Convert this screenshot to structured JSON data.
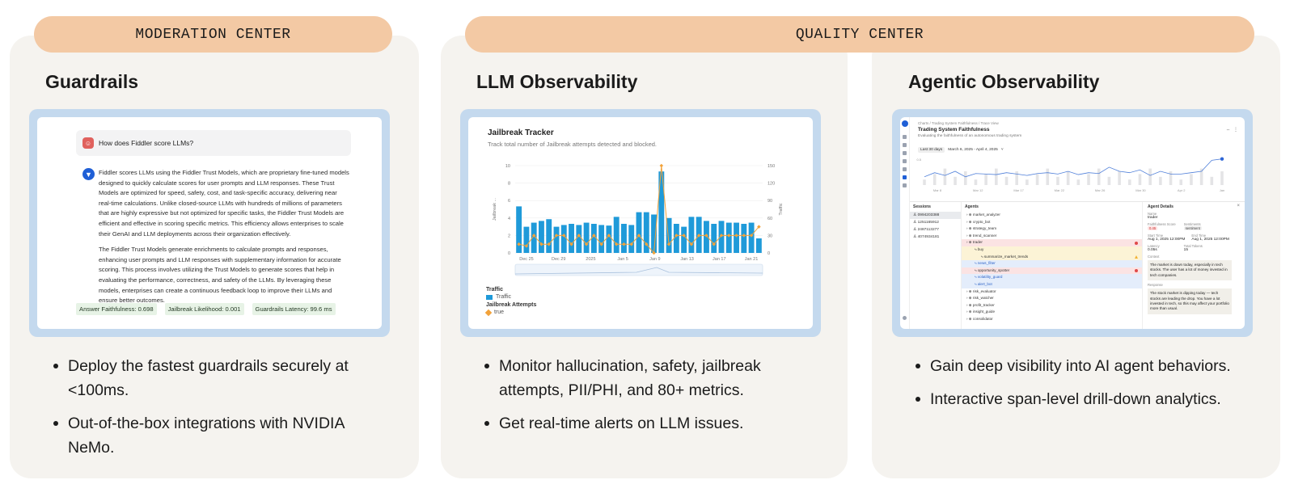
{
  "pills": {
    "moderation": "MODERATION CENTER",
    "quality": "QUALITY CENTER"
  },
  "cards": [
    {
      "title": "Guardrails",
      "bullets": [
        "Deploy the fastest guardrails securely at <100ms.",
        "Out-of-the-box integrations with NVIDIA NeMo."
      ]
    },
    {
      "title": "LLM Observability",
      "bullets": [
        "Monitor hallucination, safety, jailbreak attempts, PII/PHI, and 80+ metrics.",
        "Get real-time alerts on LLM issues."
      ]
    },
    {
      "title": "Agentic Observability",
      "bullets": [
        "Gain deep visibility into AI agent behaviors.",
        "Interactive span-level drill-down analytics."
      ]
    }
  ],
  "guardrails": {
    "question": "How does Fiddler score LLMs?",
    "answer_p1": "Fiddler scores LLMs using the Fiddler Trust Models, which are proprietary fine-tuned models designed to quickly calculate scores for user prompts and LLM responses. These Trust Models are optimized for speed, safety, cost, and task-specific accuracy, delivering near real-time calculations. Unlike closed-source LLMs with hundreds of millions of parameters that are highly expressive but not optimized for specific tasks, the Fiddler Trust Models are efficient and effective in scoring specific metrics. This efficiency allows enterprises to scale their GenAI and LLM deployments across their organization effectively.",
    "answer_p2": "The Fiddler Trust Models generate enrichments to calculate prompts and responses, enhancing user prompts and LLM responses with supplementary information for accurate scoring. This process involves utilizing the Trust Models to generate scores that help in evaluating the performance, correctness, and safety of the LLMs. By leveraging these models, enterprises can create a continuous feedback loop to improve their LLMs and ensure better outcomes.",
    "metrics": [
      "Answer Faithfulness: 0.698",
      "Jailbreak Likelihood: 0.001",
      "Guardrails Latency: 99.6 ms"
    ]
  },
  "jailbreak": {
    "title": "Jailbreak Tracker",
    "subtitle": "Track total number of Jailbreak attempts detected and blocked.",
    "legend": {
      "traffic_header": "Traffic",
      "traffic_item": "Traffic",
      "jailbreak_header": "Jailbreak Attempts",
      "jailbreak_item": "true"
    },
    "colors": {
      "bar": "#1f9ad9",
      "line": "#f2a23a"
    }
  },
  "chart_data": {
    "type": "bar",
    "x_ticks": [
      "Dec 25",
      "Dec 29",
      "2025",
      "Jan 5",
      "Jan 9",
      "Jan 13",
      "Jan 17",
      "Jan 21"
    ],
    "ylabel_left": "Jailbreak ...",
    "ylabel_right": "Traffic",
    "ylim_left": [
      0,
      10
    ],
    "ylim_right": [
      0,
      150
    ],
    "yticks_left": [
      0,
      2,
      4,
      6,
      8,
      10
    ],
    "yticks_right": [
      0,
      30,
      60,
      90,
      120,
      150
    ],
    "series": [
      {
        "name": "Traffic",
        "type": "bar",
        "axis": "right",
        "values": [
          80,
          45,
          52,
          55,
          58,
          45,
          48,
          50,
          48,
          52,
          50,
          48,
          47,
          62,
          50,
          48,
          70,
          70,
          66,
          140,
          60,
          50,
          45,
          62,
          62,
          55,
          50,
          55,
          52,
          52,
          50,
          52,
          25
        ]
      },
      {
        "name": "Jailbreak Attempts",
        "type": "line",
        "axis": "left",
        "values": [
          1,
          0.8,
          2,
          1,
          1,
          2,
          2,
          1,
          2,
          1,
          2,
          1,
          2,
          1,
          1,
          1,
          2,
          1,
          0,
          10,
          1,
          2,
          2,
          1,
          2,
          2,
          1,
          2,
          2,
          2,
          2,
          2,
          3
        ]
      }
    ]
  },
  "agentic": {
    "breadcrumb": "Charts  /  Trading System Faithfulness  /  Trace View",
    "title": "Trading System Faithfulness",
    "subtitle": "Evaluating the faithfulness of an autonomous trading system",
    "range_chip": "Last 30 days",
    "range_text": "March 6, 2025 - April 4, 2025",
    "chart_ticks": [
      "Mar 8",
      "Mar 12",
      "Mar 17",
      "Mar 22",
      "Mar 26",
      "Mar 30",
      "Apr 2",
      "Jan"
    ],
    "sessions_header": "Sessions",
    "sessions": [
      "0994203388",
      "1251165912",
      "2487113277",
      "4074934181"
    ],
    "agents_header": "Agents",
    "agents": [
      "market_analyzer",
      "crypto_bot",
      "strategy_team",
      "trend_scanner",
      "trader",
      "buy",
      "summarize_market_trends",
      "news_filter",
      "opportunity_spotter",
      "volatility_guard",
      "alert_bot",
      "risk_evaluator",
      "risk_watcher",
      "profit_tracker",
      "insight_guide",
      "consolidator"
    ],
    "details": {
      "header": "Agent Details",
      "name_label": "Name",
      "name": "trader",
      "score_label": "Faithfulness Score",
      "score": "0.45",
      "sentiment_label": "Sentiments",
      "sentiment": "sentiment",
      "start_label": "Start Time",
      "start": "Aug 1, 2025 12:00PM",
      "end_label": "End Time",
      "end": "Aug 1, 2025 12:00PM",
      "latency_label": "Latency",
      "latency": "0.05s",
      "tokens_label": "Total Tokens",
      "tokens": "15",
      "context_label": "Context",
      "context": "The market is down today, especially in tech stocks. The user has a lot of money invested in tech companies.",
      "response_label": "Response",
      "response": "The stock market is dipping today — tech stocks are leading the drop. You have a lot invested in tech, so this may affect your portfolio more than usual."
    }
  }
}
